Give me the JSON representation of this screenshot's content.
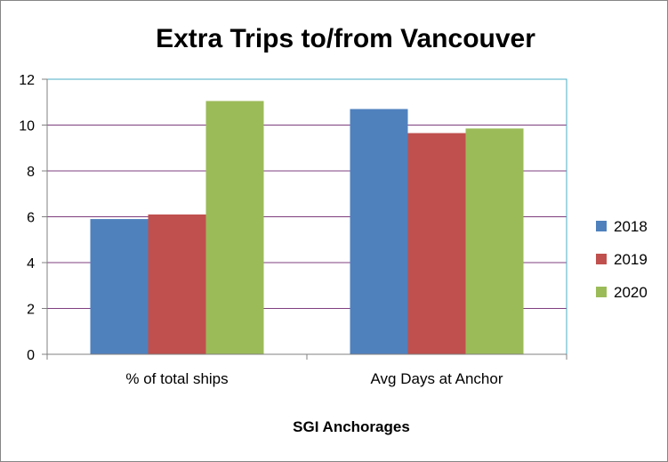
{
  "chart_data": {
    "type": "bar",
    "title": "Extra Trips to/from Vancouver",
    "xlabel": "SGI Anchorages",
    "ylabel": "",
    "categories": [
      "% of total ships",
      "Avg Days at Anchor"
    ],
    "series": [
      {
        "name": "2018",
        "color": "#4f81bd",
        "values": [
          5.9,
          10.7
        ]
      },
      {
        "name": "2019",
        "color": "#c0504d",
        "values": [
          6.1,
          9.65
        ]
      },
      {
        "name": "2020",
        "color": "#9bbb59",
        "values": [
          11.05,
          9.85
        ]
      }
    ],
    "ylim": [
      0,
      12
    ],
    "yticks": [
      0,
      2,
      4,
      6,
      8,
      10,
      12
    ],
    "grid": true,
    "gridline_color": "#7f3f7f",
    "legend_position": "right"
  }
}
